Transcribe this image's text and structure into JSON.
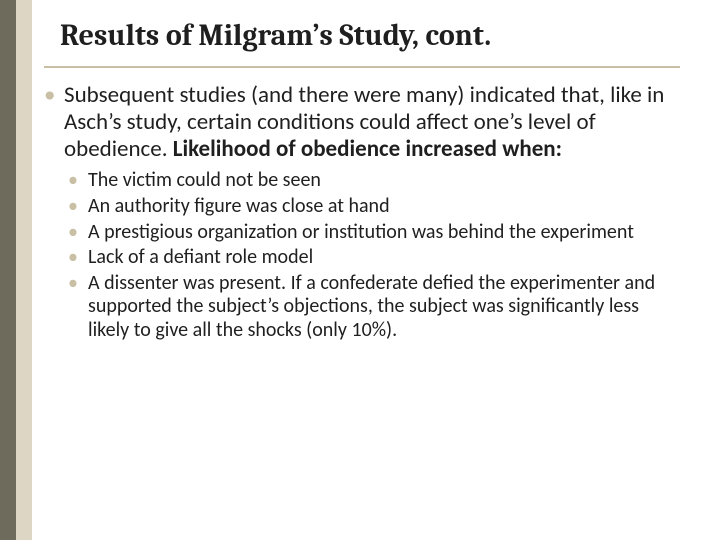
{
  "colors": {
    "stripe_dark": "#6e6a5c",
    "stripe_light": "#ddd6c4",
    "underline": "#c8bfa4",
    "text": "#1f1f1f",
    "bullet": "#c8bfa4",
    "background": "#ffffff"
  },
  "title": {
    "text": "Results of Milgram’s Study, cont.",
    "style": "font-size:30px;"
  },
  "underline": {
    "style": "background:#c8bfa4;"
  },
  "body": {
    "bullet_glyph": "•",
    "lvl1_style": "font-size:23px;",
    "lvl1_bullet_style": "color:#c8bfa4;font-size:23px;",
    "lvl1_text_a": "Subsequent studies (and there were many) indicated that, like in Asch’s study, certain conditions could affect one’s level of obedience.  ",
    "lvl1_text_b": "Likelihood of obedience increased when:",
    "lvl2_style": "font-size:20px;",
    "lvl2_bullet_style": "color:#c8bfa4;font-size:20px;",
    "sub_items": [
      "The victim could not be seen",
      "An authority figure was close at hand",
      "A prestigious organization or institution was behind the experiment",
      "Lack of a defiant role model",
      "A dissenter was present. If a confederate defied the experimenter and supported the subject’s objections, the subject was significantly less likely to give all the shocks (only 10%)."
    ]
  }
}
